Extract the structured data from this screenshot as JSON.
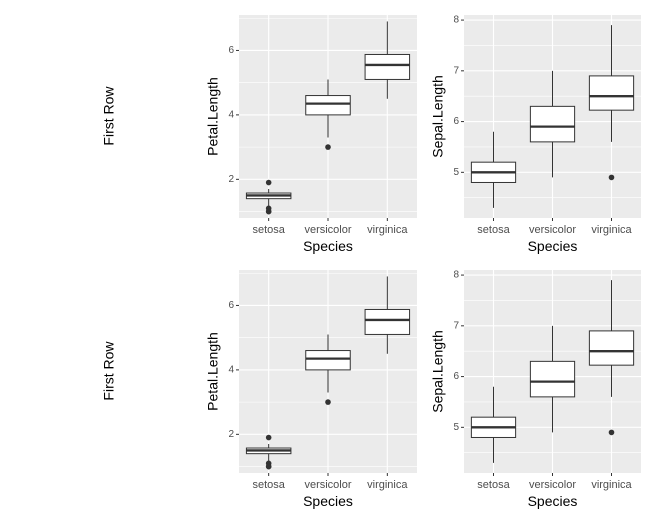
{
  "row_labels": [
    "First Row",
    "First Row"
  ],
  "colors": {
    "panel_bg": "#EBEBEB",
    "grid": "#FFFFFF",
    "box_fill": "#FFFFFF",
    "stroke": "#333333",
    "tick_text": "#4D4D4D"
  },
  "chart_data": [
    {
      "type": "box",
      "row": 0,
      "xlabel": "Species",
      "ylabel": "Petal.Length",
      "categories": [
        "setosa",
        "versicolor",
        "virginica"
      ],
      "ylim": [
        0.8,
        7.1
      ],
      "yticks": [
        2,
        4,
        6
      ],
      "boxes": [
        {
          "category": "setosa",
          "lower_whisker": 1.14,
          "q1": 1.4,
          "median": 1.5,
          "q3": 1.575,
          "upper_whisker": 1.7,
          "outliers": [
            1.9,
            1.1,
            1.0,
            1.0
          ]
        },
        {
          "category": "versicolor",
          "lower_whisker": 3.3,
          "q1": 4.0,
          "median": 4.35,
          "q3": 4.6,
          "upper_whisker": 5.1,
          "outliers": [
            3.0
          ]
        },
        {
          "category": "virginica",
          "lower_whisker": 4.5,
          "q1": 5.1,
          "median": 5.55,
          "q3": 5.875,
          "upper_whisker": 6.9,
          "outliers": []
        }
      ]
    },
    {
      "type": "box",
      "row": 0,
      "xlabel": "Species",
      "ylabel": "Sepal.Length",
      "categories": [
        "setosa",
        "versicolor",
        "virginica"
      ],
      "ylim": [
        4.1,
        8.1
      ],
      "yticks": [
        5,
        6,
        7,
        8
      ],
      "boxes": [
        {
          "category": "setosa",
          "lower_whisker": 4.3,
          "q1": 4.8,
          "median": 5.0,
          "q3": 5.2,
          "upper_whisker": 5.8,
          "outliers": []
        },
        {
          "category": "versicolor",
          "lower_whisker": 4.9,
          "q1": 5.6,
          "median": 5.9,
          "q3": 6.3,
          "upper_whisker": 7.0,
          "outliers": []
        },
        {
          "category": "virginica",
          "lower_whisker": 5.6,
          "q1": 6.225,
          "median": 6.5,
          "q3": 6.9,
          "upper_whisker": 7.9,
          "outliers": [
            4.9
          ]
        }
      ]
    },
    {
      "type": "box",
      "row": 1,
      "xlabel": "Species",
      "ylabel": "Petal.Length",
      "categories": [
        "setosa",
        "versicolor",
        "virginica"
      ],
      "ylim": [
        0.8,
        7.1
      ],
      "yticks": [
        2,
        4,
        6
      ],
      "boxes": [
        {
          "category": "setosa",
          "lower_whisker": 1.14,
          "q1": 1.4,
          "median": 1.5,
          "q3": 1.575,
          "upper_whisker": 1.7,
          "outliers": [
            1.9,
            1.1,
            1.0,
            1.0
          ]
        },
        {
          "category": "versicolor",
          "lower_whisker": 3.3,
          "q1": 4.0,
          "median": 4.35,
          "q3": 4.6,
          "upper_whisker": 5.1,
          "outliers": [
            3.0
          ]
        },
        {
          "category": "virginica",
          "lower_whisker": 4.5,
          "q1": 5.1,
          "median": 5.55,
          "q3": 5.875,
          "upper_whisker": 6.9,
          "outliers": []
        }
      ]
    },
    {
      "type": "box",
      "row": 1,
      "xlabel": "Species",
      "ylabel": "Sepal.Length",
      "categories": [
        "setosa",
        "versicolor",
        "virginica"
      ],
      "ylim": [
        4.1,
        8.1
      ],
      "yticks": [
        5,
        6,
        7,
        8
      ],
      "boxes": [
        {
          "category": "setosa",
          "lower_whisker": 4.3,
          "q1": 4.8,
          "median": 5.0,
          "q3": 5.2,
          "upper_whisker": 5.8,
          "outliers": []
        },
        {
          "category": "versicolor",
          "lower_whisker": 4.9,
          "q1": 5.6,
          "median": 5.9,
          "q3": 6.3,
          "upper_whisker": 7.0,
          "outliers": []
        },
        {
          "category": "virginica",
          "lower_whisker": 5.6,
          "q1": 6.225,
          "median": 6.5,
          "q3": 6.9,
          "upper_whisker": 7.9,
          "outliers": [
            4.9
          ]
        }
      ]
    }
  ]
}
